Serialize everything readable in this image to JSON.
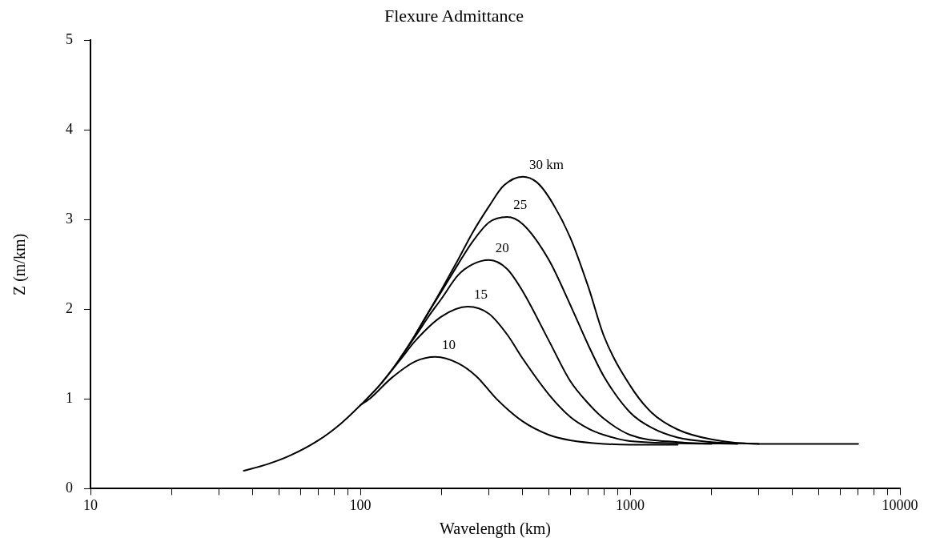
{
  "chart_data": {
    "type": "line",
    "title": "Flexure Admittance",
    "xlabel": "Wavelength (km)",
    "ylabel": "Z (m/km)",
    "log": "x",
    "grid": false,
    "legend": false,
    "marker": "none",
    "line_style": "solid",
    "xlim": [
      10,
      10000
    ],
    "xticks": [
      10,
      {
        "value": 20,
        "label": null
      },
      {
        "value": 30,
        "label": null
      },
      {
        "value": 40,
        "label": null
      },
      {
        "value": 50,
        "label": null
      },
      {
        "value": 60,
        "label": null
      },
      {
        "value": 70,
        "label": null
      },
      {
        "value": 80,
        "label": null
      },
      {
        "value": 90,
        "label": null
      },
      100,
      {
        "value": 200,
        "label": null
      },
      {
        "value": 300,
        "label": null
      },
      {
        "value": 400,
        "label": null
      },
      {
        "value": 500,
        "label": null
      },
      {
        "value": 600,
        "label": null
      },
      {
        "value": 700,
        "label": null
      },
      {
        "value": 800,
        "label": null
      },
      {
        "value": 900,
        "label": null
      },
      1000,
      {
        "value": 2000,
        "label": null
      },
      {
        "value": 3000,
        "label": null
      },
      {
        "value": 4000,
        "label": null
      },
      {
        "value": 5000,
        "label": null
      },
      {
        "value": 6000,
        "label": null
      },
      {
        "value": 7000,
        "label": null
      },
      {
        "value": 8000,
        "label": null
      },
      {
        "value": 9000,
        "label": null
      },
      10000
    ],
    "ylim": [
      0,
      5
    ],
    "yticks": [
      0,
      1,
      2,
      3,
      4,
      5
    ],
    "series": [
      {
        "name": "30 km",
        "color": "#000000",
        "x": [
          37,
          45,
          55,
          70,
          85,
          100,
          120,
          140,
          160,
          180,
          200,
          230,
          260,
          300,
          340,
          400,
          450,
          500,
          600,
          700,
          800,
          1000,
          1200,
          1500,
          2000,
          3000,
          7000
        ],
        "values": [
          0.2,
          0.27,
          0.37,
          0.54,
          0.73,
          0.93,
          1.18,
          1.45,
          1.72,
          1.98,
          2.22,
          2.55,
          2.85,
          3.15,
          3.38,
          3.48,
          3.42,
          3.25,
          2.8,
          2.25,
          1.7,
          1.15,
          0.85,
          0.66,
          0.55,
          0.5,
          0.5
        ]
      },
      {
        "name": "25",
        "color": "#000000",
        "x": [
          160,
          180,
          200,
          230,
          260,
          300,
          350,
          400,
          500,
          600,
          700,
          800,
          1000,
          1200,
          1500,
          2000,
          3000
        ],
        "values": [
          1.72,
          1.98,
          2.2,
          2.5,
          2.75,
          2.97,
          3.03,
          2.95,
          2.55,
          2.05,
          1.6,
          1.25,
          0.85,
          0.68,
          0.57,
          0.52,
          0.5
        ]
      },
      {
        "name": "20",
        "color": "#000000",
        "x": [
          140,
          160,
          180,
          200,
          230,
          260,
          300,
          350,
          400,
          500,
          600,
          700,
          800,
          1000,
          1500,
          2500
        ],
        "values": [
          1.45,
          1.7,
          1.93,
          2.12,
          2.38,
          2.5,
          2.55,
          2.45,
          2.2,
          1.65,
          1.2,
          0.95,
          0.78,
          0.6,
          0.52,
          0.5
        ]
      },
      {
        "name": "15",
        "color": "#000000",
        "x": [
          120,
          140,
          160,
          200,
          250,
          300,
          350,
          400,
          500,
          600,
          700,
          800,
          1000,
          2000
        ],
        "values": [
          1.18,
          1.43,
          1.65,
          1.92,
          2.03,
          1.95,
          1.72,
          1.45,
          1.05,
          0.8,
          0.67,
          0.6,
          0.53,
          0.5
        ]
      },
      {
        "name": "10",
        "color": "#000000",
        "x": [
          100,
          110,
          130,
          160,
          190,
          230,
          270,
          320,
          400,
          500,
          600,
          800,
          1000,
          1500
        ],
        "values": [
          0.93,
          1.02,
          1.23,
          1.42,
          1.47,
          1.4,
          1.25,
          1.0,
          0.75,
          0.6,
          0.54,
          0.5,
          0.49,
          0.49
        ]
      }
    ]
  }
}
